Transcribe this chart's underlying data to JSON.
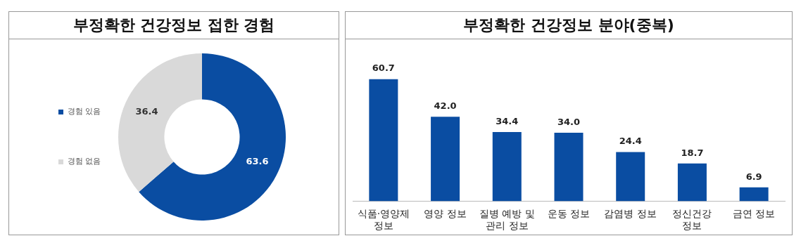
{
  "chart_data": [
    {
      "type": "donut",
      "title": "부정확한 건강정보 접한 경험",
      "categories": [
        "경험 있음",
        "경험 없음"
      ],
      "values": [
        63.6,
        36.4
      ],
      "colors": [
        "#0a4da2",
        "#d9d9d9"
      ],
      "legend": "left",
      "data_labels": true
    },
    {
      "type": "bar",
      "title": "부정확한 건강정보 분야(중복)",
      "categories": [
        "식품·영양제 정보",
        "영양 정보",
        "질병 예방 및 관리 정보",
        "운동 정보",
        "감염병 정보",
        "정신건강 정보",
        "금연 정보"
      ],
      "values": [
        60.7,
        42.0,
        34.4,
        34.0,
        24.4,
        18.7,
        6.9
      ],
      "color": "#0a4da2",
      "value_labels": [
        "60.7",
        "42.0",
        "34.4",
        "34.0",
        "24.4",
        "18.7",
        "6.9"
      ],
      "tick_labels": "x"
    }
  ]
}
